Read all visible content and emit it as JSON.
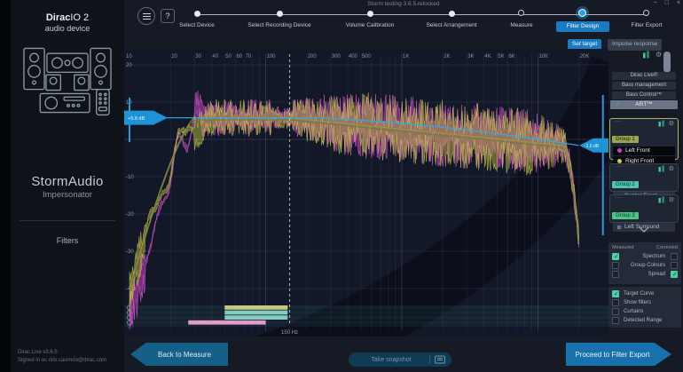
{
  "window": {
    "title": "Storm testing 3.6.5.relocked",
    "controls": {
      "minimize": "−",
      "maximize": "□",
      "close": "×"
    }
  },
  "sidebar": {
    "logo_bold": "Dirac",
    "logo_rest": "IO 2",
    "logo_line2": "audio device",
    "device_name": "StormAudio",
    "device_subtitle": "Impersonator",
    "filters_label": "Filters",
    "version": "Dirac Live v3.6.5",
    "signed_in": "Signed in as nilo.casimiro@dirac.com"
  },
  "stepper": {
    "steps": [
      {
        "label": "Select Device",
        "state": "done"
      },
      {
        "label": "Select Recording Device",
        "state": "done"
      },
      {
        "label": "Volume Calibration",
        "state": "done"
      },
      {
        "label": "Select Arrangement",
        "state": "done"
      },
      {
        "label": "Measure",
        "state": "open"
      },
      {
        "label": "Filter Design",
        "state": "active"
      },
      {
        "label": "Filter Export",
        "state": "open"
      }
    ]
  },
  "subtabs": [
    {
      "label": "Set target",
      "active": true
    },
    {
      "label": "Impulse response",
      "active": false
    }
  ],
  "chart_data": {
    "type": "line",
    "x_axis": {
      "scale": "log",
      "unit": "Hz",
      "range": [
        10,
        20000
      ],
      "ticks": [
        10,
        20,
        30,
        40,
        50,
        60,
        70,
        100,
        200,
        300,
        400,
        500,
        1000,
        2000,
        3000,
        4000,
        5000,
        6000,
        10000,
        20000
      ],
      "tick_labels": [
        "10",
        "20",
        "30",
        "40",
        "50",
        "60",
        "70",
        "100",
        "200",
        "300",
        "400",
        "500",
        "1K",
        "2K",
        "3K",
        "4K",
        "5K",
        "6K",
        "10K",
        "20K"
      ]
    },
    "y_axis": {
      "unit": "dB",
      "ticks": [
        20,
        10,
        0,
        -10,
        -20,
        -30,
        -40,
        -50
      ],
      "range": [
        -50,
        25
      ],
      "grid": true
    },
    "series": [
      {
        "name": "Left Front",
        "color": "#c344c3"
      },
      {
        "name": "Right Front",
        "color": "#c9c64a"
      }
    ],
    "target_curve": {
      "color": "#2fa9e9",
      "level_left_db": 5.8,
      "level_right_db": -1.6,
      "flat_until_hz": 200,
      "left_handle_label": "+5.8 dB",
      "right_handle_label": "-1.6 dB"
    },
    "cursor": {
      "hz": 150,
      "label": "150 Hz"
    },
    "curtains": {
      "left_hz": 10,
      "right_hz": 30000,
      "color": "#2b98dd"
    },
    "range_bars": [
      {
        "row": 0,
        "from_hz": 50,
        "to_hz": 145,
        "color": "#c6c97c"
      },
      {
        "row": 1,
        "from_hz": 50,
        "to_hz": 145,
        "color": "#82cdbf"
      },
      {
        "row": 2,
        "from_hz": 50,
        "to_hz": 145,
        "color": "#82cdbf"
      },
      {
        "row": 3,
        "from_hz": 27,
        "to_hz": 100,
        "color": "#dd9fc8"
      }
    ]
  },
  "right_panel": {
    "products": [
      "Dirac Live®",
      "Bass management",
      "Bass Control™"
    ],
    "art_label": "ART™",
    "groups": [
      {
        "name": "Group 1",
        "selected": true,
        "channels": [
          {
            "name": "Left Front",
            "color": "#d63ed6"
          },
          {
            "name": "Right Front",
            "color": "#d9cb3c"
          }
        ]
      },
      {
        "name": "Group 2",
        "selected": false,
        "channels": [
          {
            "name": "Center Front"
          }
        ]
      },
      {
        "name": "Group 3",
        "selected": false,
        "channels": [
          {
            "name": "Left Surround"
          }
        ]
      }
    ],
    "legend": {
      "measured_header": "Measured",
      "corrected_header": "Corrected",
      "rows": [
        {
          "label": "Spectrum",
          "measured": true,
          "corrected": false
        },
        {
          "label": "Group Colours",
          "measured": false,
          "corrected": false
        },
        {
          "label": "Spread",
          "measured": false,
          "corrected": true
        }
      ]
    },
    "options": [
      {
        "label": "Target Curve",
        "checked": true
      },
      {
        "label": "Show filters",
        "checked": false
      },
      {
        "label": "Curtains",
        "checked": false
      },
      {
        "label": "Detected Range",
        "checked": false
      }
    ]
  },
  "footer": {
    "back": "Back to Measure",
    "snapshot": "Take snapshot",
    "proceed": "Proceed to Filter Export"
  }
}
